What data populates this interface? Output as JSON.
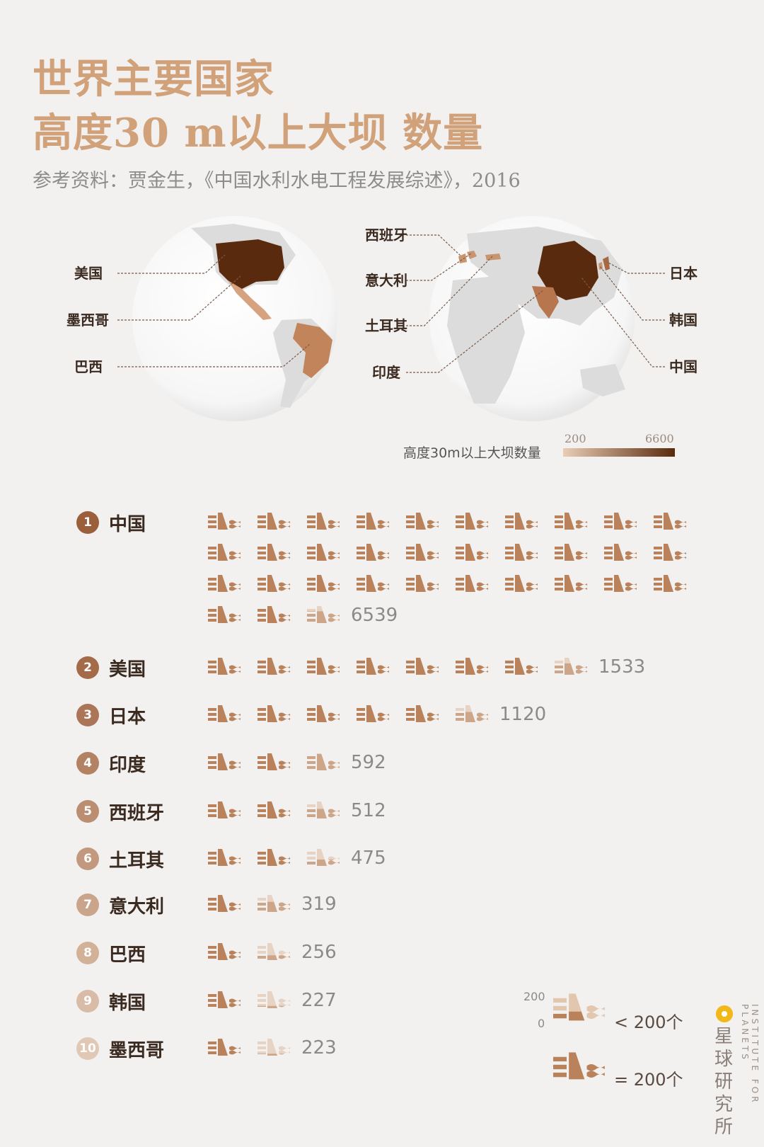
{
  "header": {
    "title_line1": "世界主要国家",
    "title_line2": "高度30 m以上大坝 数量",
    "source": "参考资料：贾金生，《中国水利水电工程发展综述》，2016"
  },
  "map": {
    "labels_left": [
      "美国",
      "墨西哥",
      "巴西"
    ],
    "labels_right_a": [
      "西班牙",
      "意大利",
      "土耳其",
      "印度"
    ],
    "labels_right_b": [
      "日本",
      "韩国",
      "中国"
    ],
    "legend_title": "高度30m以上大坝数量",
    "legend_min": "200",
    "legend_max": "6600",
    "colors": {
      "low": "#e8cdb4",
      "high": "#5a2a0e",
      "land": "#dcdcdc",
      "globe": "#ffffff"
    }
  },
  "chart_data": {
    "type": "bar",
    "unit_per_icon": 200,
    "categories": [
      "中国",
      "美国",
      "日本",
      "印度",
      "西班牙",
      "土耳其",
      "意大利",
      "巴西",
      "韩国",
      "墨西哥"
    ],
    "ranks": [
      "1",
      "2",
      "3",
      "4",
      "5",
      "6",
      "7",
      "8",
      "9",
      "10"
    ],
    "values": [
      6539,
      1533,
      1120,
      592,
      512,
      475,
      319,
      256,
      227,
      223
    ],
    "value_labels": [
      "6539",
      "1533",
      "1120",
      "592",
      "512",
      "475",
      "319",
      "256",
      "227",
      "223"
    ]
  },
  "key": {
    "scale_top": "200",
    "scale_bottom": "0",
    "partial_label": "< 200个",
    "full_label": "= 200个"
  },
  "brand": {
    "name_cn": "星球研究所",
    "name_en": "INSTITUTE FOR PLANETS"
  },
  "colors": {
    "accent": "#b9825a",
    "title": "#d1a27a",
    "rank_dark": "#9c5f3c",
    "rank_light": "#d9b49a"
  }
}
